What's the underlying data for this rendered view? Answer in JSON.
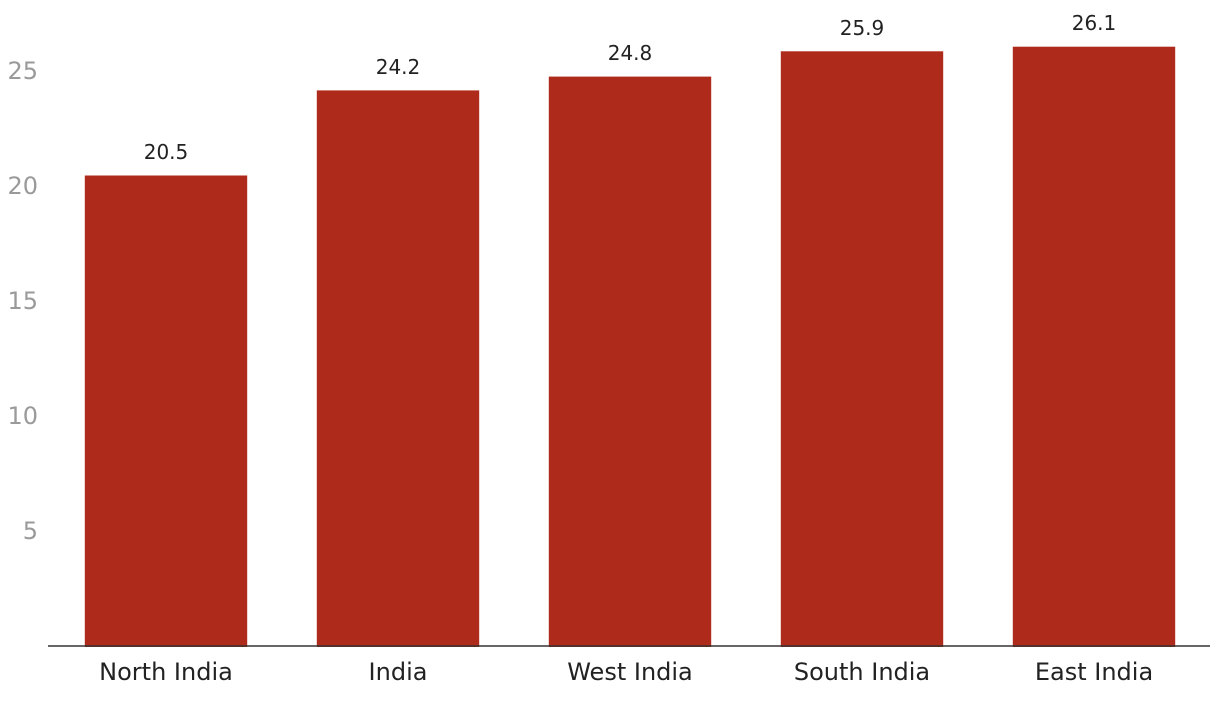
{
  "chart_data": {
    "type": "bar",
    "categories": [
      "North India",
      "India",
      "West India",
      "South India",
      "East India"
    ],
    "values": [
      20.5,
      24.2,
      24.8,
      25.9,
      26.1
    ],
    "color": "#ae2a1a",
    "ylim": [
      0,
      28
    ],
    "yticks": [
      5,
      10,
      15,
      20,
      25
    ],
    "grid": false
  }
}
